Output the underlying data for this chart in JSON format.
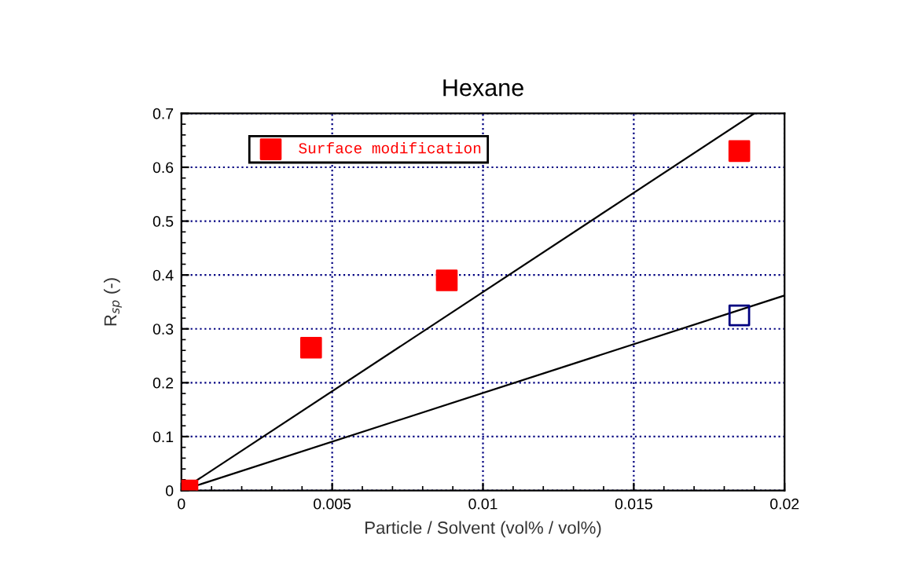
{
  "chart_data": {
    "type": "scatter",
    "title": "Hexane",
    "xlabel": "Particle / Solvent (vol% / vol%)",
    "ylabel": "R$_{sp}$ (-)",
    "xlim": [
      0,
      0.02
    ],
    "xticks": [
      0,
      0.005,
      0.01,
      0.015,
      0.02
    ],
    "ylim": [
      0,
      0.7
    ],
    "yticks": [
      0,
      0.1,
      0.2,
      0.3,
      0.4,
      0.5,
      0.6,
      0.7
    ],
    "grid": true,
    "legend": "top left",
    "series": [
      {
        "color": "#000080",
        "marker": "square",
        "x": [
          0.0185
        ],
        "values": [
          0.325
        ]
      },
      {
        "name": "Surface modification",
        "color": "#ff0000",
        "marker": "square",
        "x": [
          0.0002,
          0.0043,
          0.0088,
          0.0185
        ],
        "values": [
          0,
          0.265,
          0.39,
          0.63
        ]
      },
      {
        "type": "line",
        "color": "#000000",
        "x": [
          0,
          0.02
        ],
        "values": [
          0,
          0.362
        ]
      },
      {
        "type": "line",
        "color": "#000000",
        "x": [
          0,
          0.019
        ],
        "values": [
          0,
          0.7
        ]
      }
    ]
  }
}
